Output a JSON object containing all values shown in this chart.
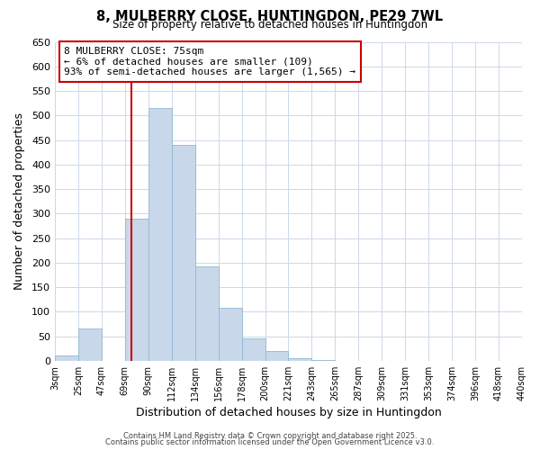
{
  "title": "8, MULBERRY CLOSE, HUNTINGDON, PE29 7WL",
  "subtitle": "Size of property relative to detached houses in Huntingdon",
  "xlabel": "Distribution of detached houses by size in Huntingdon",
  "ylabel": "Number of detached properties",
  "bin_labels": [
    "3sqm",
    "25sqm",
    "47sqm",
    "69sqm",
    "90sqm",
    "112sqm",
    "134sqm",
    "156sqm",
    "178sqm",
    "200sqm",
    "221sqm",
    "243sqm",
    "265sqm",
    "287sqm",
    "309sqm",
    "331sqm",
    "353sqm",
    "374sqm",
    "396sqm",
    "418sqm",
    "440sqm"
  ],
  "n_bins": 20,
  "bar_heights": [
    10,
    65,
    0,
    290,
    515,
    440,
    192,
    107,
    46,
    20,
    5,
    2,
    0,
    0,
    0,
    0,
    0,
    0,
    0,
    0
  ],
  "bar_color": "#c8d8ea",
  "bar_edge_color": "#90b8d0",
  "ylim": [
    0,
    650
  ],
  "yticks": [
    0,
    50,
    100,
    150,
    200,
    250,
    300,
    350,
    400,
    450,
    500,
    550,
    600,
    650
  ],
  "property_line_bin": 3.27,
  "property_line_color": "#cc0000",
  "annotation_title": "8 MULBERRY CLOSE: 75sqm",
  "annotation_line1": "← 6% of detached houses are smaller (109)",
  "annotation_line2": "93% of semi-detached houses are larger (1,565) →",
  "annotation_box_color": "#ffffff",
  "annotation_box_edge": "#cc0000",
  "footer1": "Contains HM Land Registry data © Crown copyright and database right 2025.",
  "footer2": "Contains public sector information licensed under the Open Government Licence v3.0.",
  "background_color": "#ffffff",
  "grid_color": "#ccd8e8"
}
